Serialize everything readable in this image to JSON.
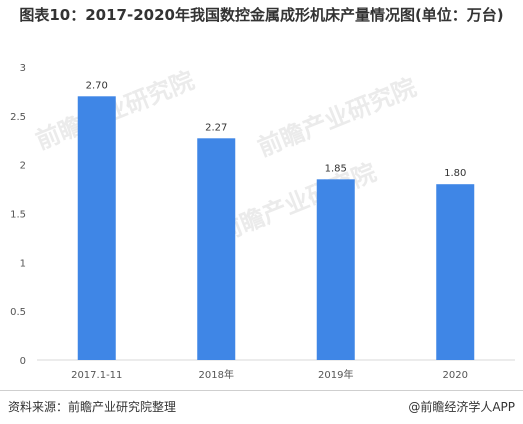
{
  "chart_data": {
    "type": "bar",
    "title": "图表10：2017-2020年我国数控金属成形机床产量情况图(单位：万台)",
    "categories": [
      "2017.1-11",
      "2018年",
      "2019年",
      "2020"
    ],
    "values": [
      2.7,
      2.27,
      1.85,
      1.8
    ],
    "data_labels": [
      "2.70",
      "2.27",
      "1.85",
      "1.80"
    ],
    "xlabel": "",
    "ylabel": "",
    "ylim": [
      0,
      3
    ],
    "yticks": [
      "0",
      "0.5",
      "1",
      "1.5",
      "2",
      "2.5",
      "3"
    ],
    "grid": false,
    "bar_color": "#3f86e6"
  },
  "footer": {
    "source": "资料来源：前瞻产业研究院整理",
    "brand": "@前瞻经济学人APP"
  },
  "watermark": {
    "text": "前瞻产业研究院",
    "color": "#ebebeb"
  }
}
